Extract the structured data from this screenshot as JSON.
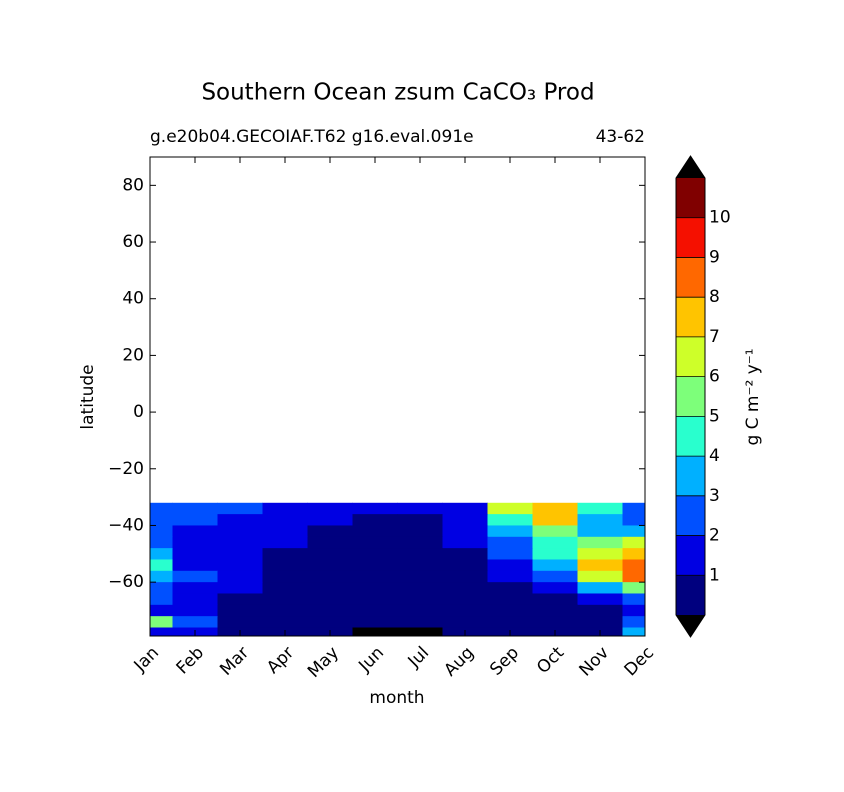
{
  "chart_data": {
    "type": "contour",
    "title": "Southern Ocean zsum CaCO₃ Prod",
    "subtitle_left": "g.e20b04.GECOIAF.T62 g16.eval.091e",
    "subtitle_right": "43-62",
    "xlabel": "month",
    "ylabel": "latitude",
    "categories": [
      "Jan",
      "Feb",
      "Mar",
      "Apr",
      "May",
      "Jun",
      "Jul",
      "Aug",
      "Sep",
      "Oct",
      "Nov",
      "Dec"
    ],
    "y": [
      -34,
      -38,
      -42,
      -46,
      -50,
      -54,
      -58,
      -62,
      -66,
      -70,
      -74,
      -78
    ],
    "z": [
      [
        2.5,
        2.5,
        2,
        1.5,
        1.5,
        1,
        1,
        1.5,
        6,
        7,
        4,
        2.5
      ],
      [
        2,
        2,
        1.5,
        1.5,
        1,
        0.5,
        0.5,
        1,
        4,
        7,
        3.5,
        2.5
      ],
      [
        2,
        1.5,
        1.5,
        1,
        0.5,
        0.5,
        0.5,
        1,
        3,
        5,
        3.5,
        3
      ],
      [
        2,
        1.5,
        1.5,
        1,
        0.5,
        0.5,
        0.5,
        1,
        2.5,
        4.5,
        5,
        6
      ],
      [
        3,
        1.5,
        1,
        0.5,
        0.5,
        0.5,
        0.5,
        0.5,
        2,
        4,
        6.5,
        7
      ],
      [
        4,
        1.5,
        1,
        0.5,
        0.5,
        0.5,
        0.5,
        0.5,
        1.5,
        3.5,
        7,
        8
      ],
      [
        3.5,
        2,
        1,
        0.5,
        0.5,
        0.5,
        0.5,
        0.5,
        1,
        2.5,
        6,
        8
      ],
      [
        2.5,
        1.5,
        1,
        0.5,
        0.5,
        0.5,
        0.5,
        0.5,
        0.5,
        1.5,
        3,
        5
      ],
      [
        2,
        1.5,
        0.5,
        0.5,
        0.5,
        0.5,
        0.5,
        0.5,
        0.5,
        0.5,
        1.5,
        2.5
      ],
      [
        1.5,
        1,
        0.5,
        0.5,
        0.5,
        0.5,
        0.5,
        0.5,
        0.5,
        0.5,
        0.5,
        1.5
      ],
      [
        5,
        2,
        0.5,
        0.5,
        0.5,
        0.5,
        0.5,
        0.5,
        0.5,
        0.5,
        0.5,
        2
      ],
      [
        1.5,
        1,
        0.5,
        0.5,
        0.5,
        null,
        null,
        0.5,
        0.5,
        0.5,
        0.5,
        3
      ]
    ],
    "ylim": [
      -79,
      90
    ],
    "yticks": [
      {
        "value": -60,
        "label": "−60"
      },
      {
        "value": -40,
        "label": "−40"
      },
      {
        "value": -20,
        "label": "−20"
      },
      0,
      20,
      40,
      60,
      80
    ],
    "levels": [
      0,
      1,
      2,
      3,
      4,
      5,
      6,
      7,
      8,
      9,
      10,
      11
    ],
    "colors": [
      "#00007f",
      "#0000e3",
      "#0050ff",
      "#00b0ff",
      "#29ffce",
      "#7dff7a",
      "#ceff29",
      "#ffc400",
      "#ff6800",
      "#f51000",
      "#800000"
    ],
    "extend_color": "#000000",
    "missing_color": "#000000",
    "colorbar_ticks": [
      1,
      2,
      3,
      4,
      5,
      6,
      7,
      8,
      9,
      10
    ],
    "colorbar_label": "g C m⁻² y⁻¹"
  }
}
